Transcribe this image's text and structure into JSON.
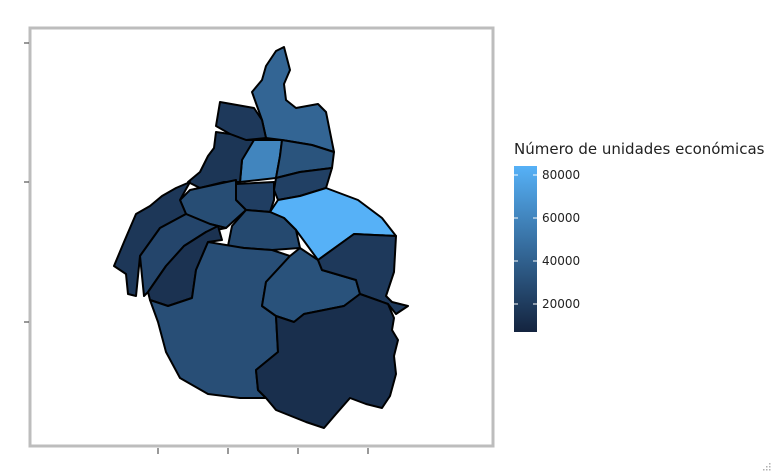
{
  "legend": {
    "title": "Número de unidades económicas",
    "tick_labels": [
      "80000",
      "60000",
      "40000",
      "20000"
    ],
    "color_low": "#14243f",
    "color_high": "#56b1f7"
  },
  "chart_data": {
    "type": "choropleth",
    "title": "",
    "legend_title": "Número de unidades económicas",
    "value_range": [
      5000,
      85000
    ],
    "legend_ticks": [
      20000,
      40000,
      60000,
      80000
    ],
    "regions": [
      {
        "id": "r01",
        "value": 42000
      },
      {
        "id": "r02",
        "value": 17000
      },
      {
        "id": "r03",
        "value": 60000
      },
      {
        "id": "r04",
        "value": 32000
      },
      {
        "id": "r05",
        "value": 15000
      },
      {
        "id": "r06",
        "value": 21000
      },
      {
        "id": "r07",
        "value": 20000
      },
      {
        "id": "r08",
        "value": 28000
      },
      {
        "id": "r09",
        "value": 85000
      },
      {
        "id": "r10",
        "value": 26000
      },
      {
        "id": "r11",
        "value": 16000
      },
      {
        "id": "r12",
        "value": 24000
      },
      {
        "id": "r13",
        "value": 13000
      },
      {
        "id": "r14",
        "value": 29000
      },
      {
        "id": "r15",
        "value": 31000
      },
      {
        "id": "r16",
        "value": 17000
      },
      {
        "id": "r17",
        "value": 11000
      }
    ]
  }
}
